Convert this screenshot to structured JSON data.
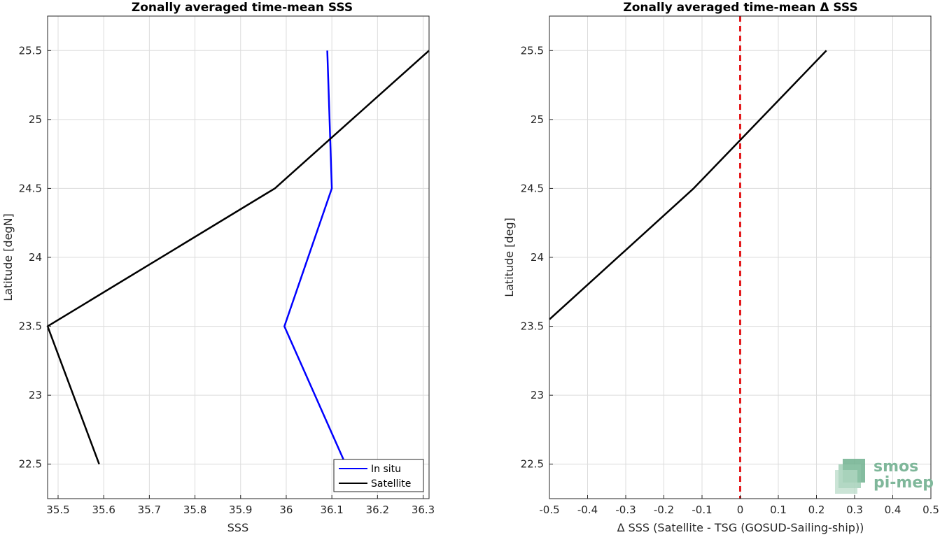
{
  "chart_data": [
    {
      "type": "line",
      "title": "Zonally averaged time-mean SSS",
      "xlabel": "SSS",
      "ylabel": "Latitude [degN]",
      "xlim": [
        35.477,
        36.313
      ],
      "ylim": [
        22.25,
        25.75
      ],
      "xticks": [
        35.5,
        35.6,
        35.7,
        35.8,
        35.9,
        36.0,
        36.1,
        36.2,
        36.3
      ],
      "xtick_labels": [
        "35.5",
        "35.6",
        "35.7",
        "35.8",
        "35.9",
        "36",
        "36.1",
        "36.2",
        "36.3"
      ],
      "yticks": [
        22.5,
        23.0,
        23.5,
        24.0,
        24.5,
        25.0,
        25.5
      ],
      "ytick_labels": [
        "22.5",
        "23",
        "23.5",
        "24",
        "24.5",
        "25",
        "25.5"
      ],
      "grid": true,
      "legend_position": "bottom-right",
      "series": [
        {
          "name": "In situ",
          "color": "#0000ff",
          "points": [
            [
              36.13,
              22.5
            ],
            [
              35.996,
              23.5
            ],
            [
              36.1,
              24.5
            ],
            [
              36.09,
              25.5
            ]
          ]
        },
        {
          "name": "Satellite",
          "color": "#000000",
          "points": [
            [
              35.59,
              22.5
            ],
            [
              35.477,
              23.5
            ],
            [
              35.975,
              24.5
            ],
            [
              36.313,
              25.5
            ]
          ]
        }
      ]
    },
    {
      "type": "line",
      "title": "Zonally averaged time-mean Δ SSS",
      "xlabel": "Δ SSS (Satellite - TSG (GOSUD-Sailing-ship))",
      "ylabel": "Latitude [deg]",
      "xlim": [
        -0.5,
        0.5
      ],
      "ylim": [
        22.25,
        25.75
      ],
      "xticks": [
        -0.5,
        -0.4,
        -0.3,
        -0.2,
        -0.1,
        0,
        0.1,
        0.2,
        0.3,
        0.4,
        0.5
      ],
      "xtick_labels": [
        "-0.5",
        "-0.4",
        "-0.3",
        "-0.2",
        "-0.1",
        "0",
        "0.1",
        "0.2",
        "0.3",
        "0.4",
        "0.5"
      ],
      "yticks": [
        22.5,
        23.0,
        23.5,
        24.0,
        24.5,
        25.0,
        25.5
      ],
      "ytick_labels": [
        "22.5",
        "23",
        "23.5",
        "24",
        "24.5",
        "25",
        "25.5"
      ],
      "grid": true,
      "zero_line": {
        "x": 0,
        "color": "#e41a1c",
        "style": "dashed"
      },
      "series": [
        {
          "color": "#000000",
          "points": [
            [
              -0.5,
              23.55
            ],
            [
              -0.122,
              24.5
            ],
            [
              0,
              24.85
            ],
            [
              0.226,
              25.5
            ]
          ]
        }
      ]
    }
  ],
  "logo": {
    "line1": "smos",
    "line2": "pi-mep",
    "color": "#7fb79a"
  }
}
